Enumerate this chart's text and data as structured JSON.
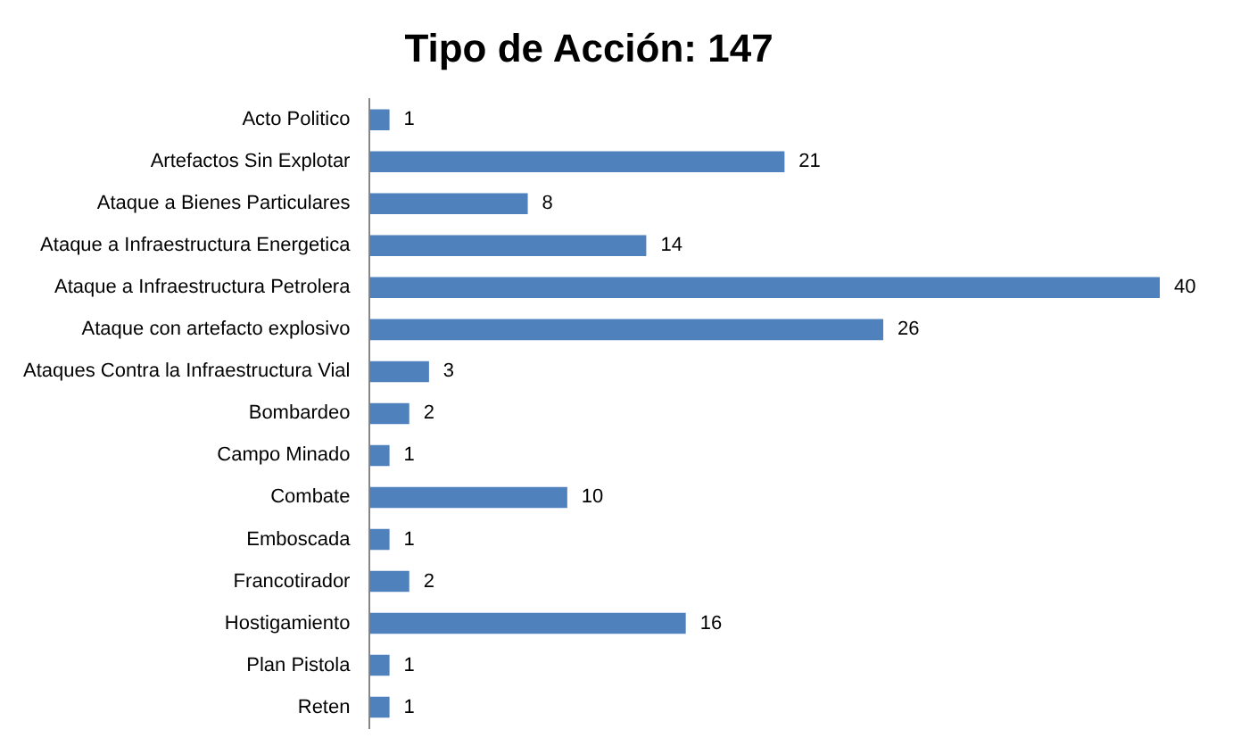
{
  "chart_data": {
    "type": "bar",
    "orientation": "horizontal",
    "title": "Tipo de Acción: 147",
    "categories": [
      "Acto Politico",
      "Artefactos Sin Explotar",
      "Ataque a Bienes Particulares",
      "Ataque a Infraestructura Energetica",
      "Ataque a Infraestructura Petrolera",
      "Ataque con artefacto explosivo",
      "Ataques Contra la Infraestructura Vial",
      "Bombardeo",
      "Campo Minado",
      "Combate",
      "Emboscada",
      "Francotirador",
      "Hostigamiento",
      "Plan Pistola",
      "Reten"
    ],
    "values": [
      1,
      21,
      8,
      14,
      40,
      26,
      3,
      2,
      1,
      10,
      1,
      2,
      16,
      1,
      1
    ],
    "color": "#4f81bd",
    "data_labels": true,
    "legend": false
  }
}
